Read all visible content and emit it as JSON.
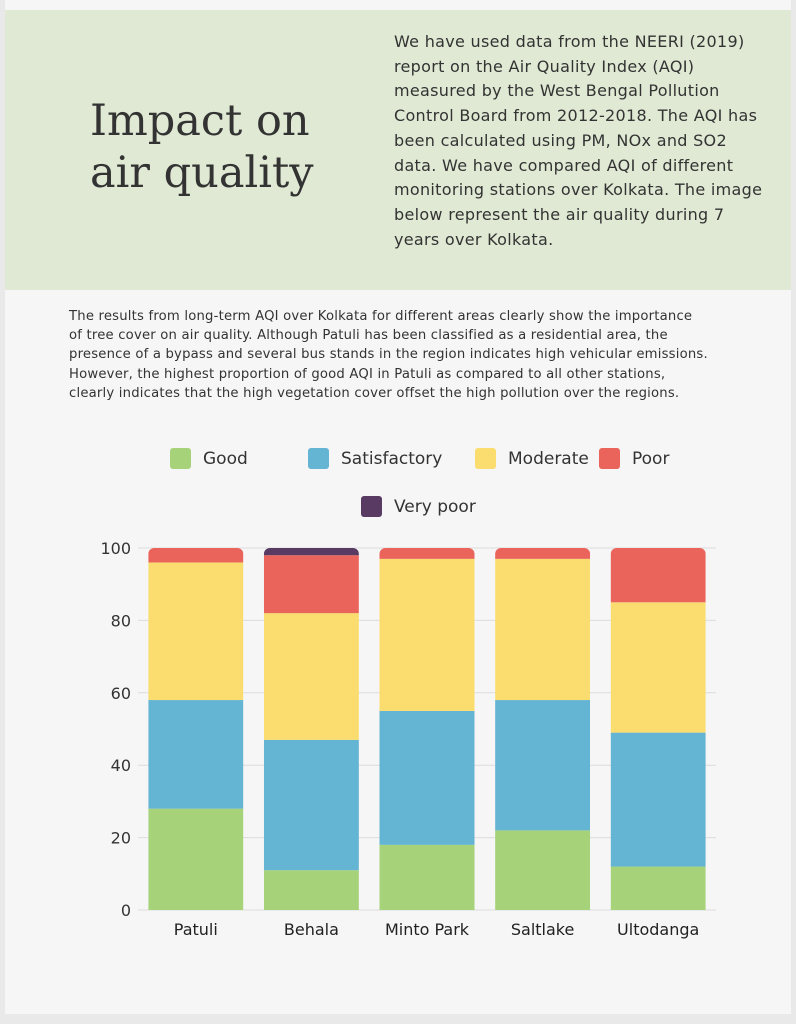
{
  "header": {
    "title_line1": "Impact on",
    "title_line2": "air quality",
    "intro": "We have used data from the NEERI (2019) report on the Air Quality Index (AQI) measured by the West Bengal Pollution Control Board from 2012-2018. The AQI has been calculated using PM, NOx and SO2 data. We have compared AQI of different monitoring stations over Kolkata. The image below represent the air quality during 7 years over Kolkata."
  },
  "description": "The results from long-term AQI over Kolkata for different areas clearly show the importance of tree cover on air quality. Although Patuli has been classified as a residential area, the presence of a bypass and several bus stands in the region indicates high vehicular emissions. However, the highest proportion of good AQI in Patuli as compared to all other stations, clearly indicates that the high vegetation cover offset the high pollution over the regions.",
  "colors": {
    "background": "#f6f6f6",
    "header": "#dfe9d3"
  },
  "chart_data": {
    "type": "bar",
    "stacked": true,
    "categories": [
      "Patuli",
      "Behala",
      "Minto Park",
      "Saltlake",
      "Ultodanga"
    ],
    "series": [
      {
        "name": "Good",
        "color": "#a6d27a",
        "values": [
          28,
          11,
          18,
          22,
          12
        ]
      },
      {
        "name": "Satisfactory",
        "color": "#64b4d4",
        "values": [
          30,
          36,
          37,
          36,
          37
        ]
      },
      {
        "name": "Moderate",
        "color": "#fadd6e",
        "values": [
          38,
          35,
          42,
          39,
          36
        ]
      },
      {
        "name": "Poor",
        "color": "#eb645c",
        "values": [
          4,
          16,
          3,
          3,
          15
        ]
      },
      {
        "name": "Very poor",
        "color": "#583a63",
        "values": [
          0,
          2,
          0,
          0,
          0
        ]
      }
    ],
    "ylim": [
      0,
      100
    ],
    "yticks": [
      0,
      20,
      40,
      60,
      80,
      100
    ],
    "grid": true,
    "legend": "top",
    "title": "",
    "xlabel": "",
    "ylabel": ""
  }
}
